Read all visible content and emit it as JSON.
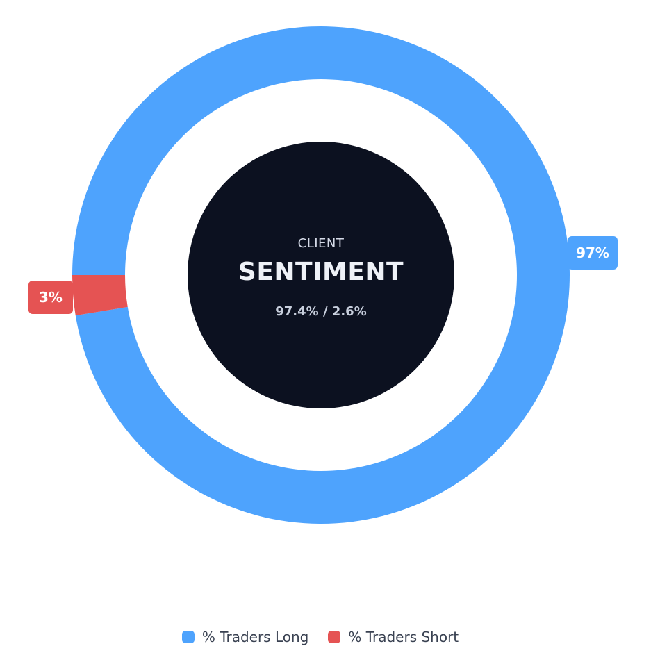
{
  "chart_data": {
    "type": "pie",
    "variant": "donut",
    "categories": [
      "% Traders Long",
      "% Traders Short"
    ],
    "values": [
      97.4,
      2.6
    ],
    "data_labels": [
      "97%",
      "3%"
    ],
    "colors": [
      "#4ea3fd",
      "#e55353"
    ],
    "center": {
      "top": "CLIENT",
      "title": "SENTIMENT",
      "sub": "97.4% / 2.6%"
    },
    "legend": {
      "position": "bottom",
      "items": [
        {
          "label": "% Traders Long",
          "color": "#4ea3fd"
        },
        {
          "label": "% Traders Short",
          "color": "#e55353"
        }
      ]
    }
  }
}
